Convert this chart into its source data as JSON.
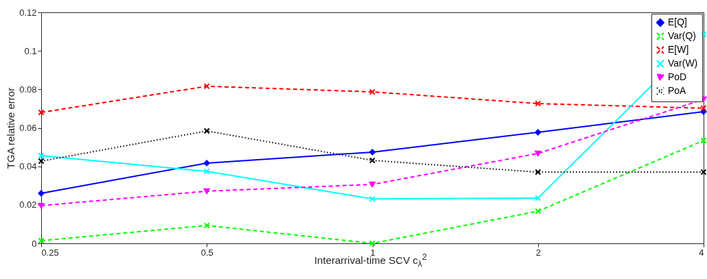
{
  "chart_data": {
    "type": "line",
    "xlabel": "Interarrival-time SCV c$_{λ}$$^{2}$",
    "ylabel": "TGA relative error",
    "x": [
      0.25,
      0.5,
      1,
      2,
      4
    ],
    "log": "x",
    "xlim": [
      0.25,
      4
    ],
    "xticks": [
      0.25,
      0.5,
      1,
      2,
      4
    ],
    "ylim": [
      0,
      0.12
    ],
    "yticks": [
      0,
      0.02,
      0.04,
      0.06,
      0.08,
      0.1,
      0.12
    ],
    "legend": "top right",
    "series": [
      {
        "name": "E[Q]",
        "color": "#0000ff",
        "marker": "diamond",
        "line_style": "solid",
        "values": [
          0.026,
          0.0417,
          0.0474,
          0.0577,
          0.0684
        ]
      },
      {
        "name": "Var(Q)",
        "color": "#00ff00",
        "marker": "cross",
        "line_style": "dashed",
        "values": [
          0.0014,
          0.0093,
          0,
          0.0167,
          0.0534
        ]
      },
      {
        "name": "E[W]",
        "color": "#ff0000",
        "marker": "cross",
        "line_style": "dashed",
        "values": [
          0.068,
          0.0816,
          0.0787,
          0.0726,
          0.0702
        ]
      },
      {
        "name": "Var(W)",
        "color": "#00ffff",
        "marker": "cross",
        "line_style": "solid",
        "values": [
          0.0456,
          0.0374,
          0.0231,
          0.0235,
          0.1086
        ]
      },
      {
        "name": "PoD",
        "color": "#ff00ff",
        "marker": "triangle",
        "line_style": "dashed",
        "values": [
          0.0196,
          0.0271,
          0.0306,
          0.0467,
          0.0748
        ]
      },
      {
        "name": "PoA",
        "color": "#000000",
        "marker": "cross",
        "line_style": "dotted",
        "values": [
          0.0427,
          0.0584,
          0.0431,
          0.037,
          0.037
        ]
      }
    ]
  }
}
